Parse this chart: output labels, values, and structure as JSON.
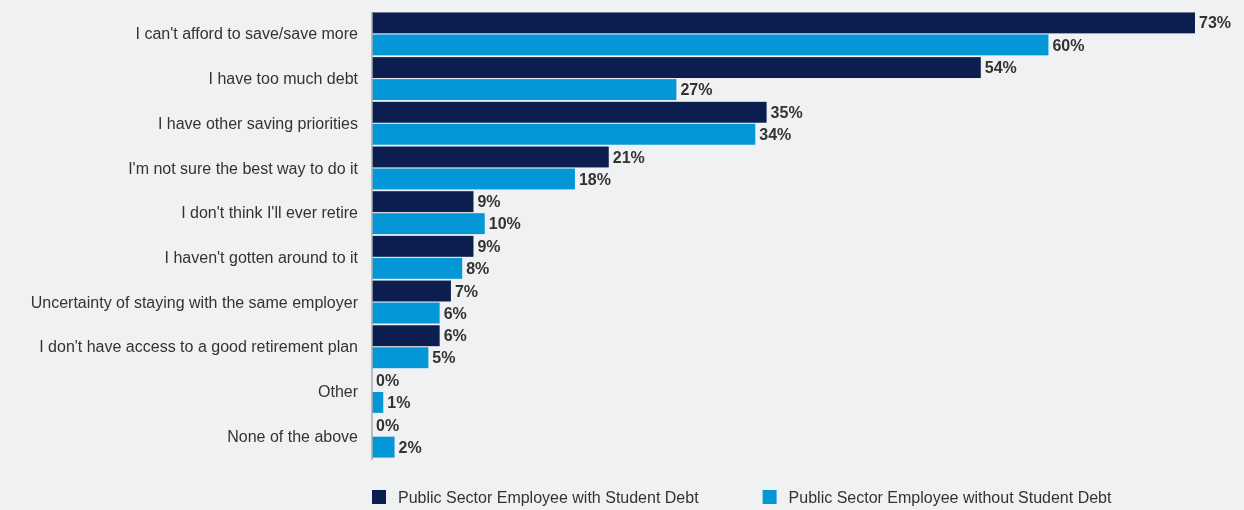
{
  "chart_data": {
    "type": "bar",
    "orientation": "horizontal",
    "legend": "bottom",
    "categories": [
      "I can't afford to save/save more",
      "I have too much debt",
      "I have other saving priorities",
      "I'm not sure the best way to do it",
      "I don't think I'll ever retire",
      "I haven't gotten around to it",
      "Uncertainty of staying with the same employer",
      "I don't have access to a good retirement plan",
      "Other",
      "None of the above"
    ],
    "series": [
      {
        "name": "Public Sector Employee with Student Debt",
        "color": "#0c1e4f",
        "values": [
          73,
          54,
          35,
          21,
          9,
          9,
          7,
          6,
          0,
          0
        ],
        "value_labels": [
          "73%",
          "54%",
          "35%",
          "21%",
          "9%",
          "9%",
          "7%",
          "6%",
          "0%",
          "0%"
        ]
      },
      {
        "name": "Public Sector Employee without Student Debt",
        "color": "#0497d8",
        "values": [
          60,
          27,
          34,
          18,
          10,
          8,
          6,
          5,
          1,
          2
        ],
        "value_labels": [
          "60%",
          "27%",
          "34%",
          "18%",
          "10%",
          "8%",
          "6%",
          "5%",
          "1%",
          "2%"
        ]
      }
    ]
  }
}
